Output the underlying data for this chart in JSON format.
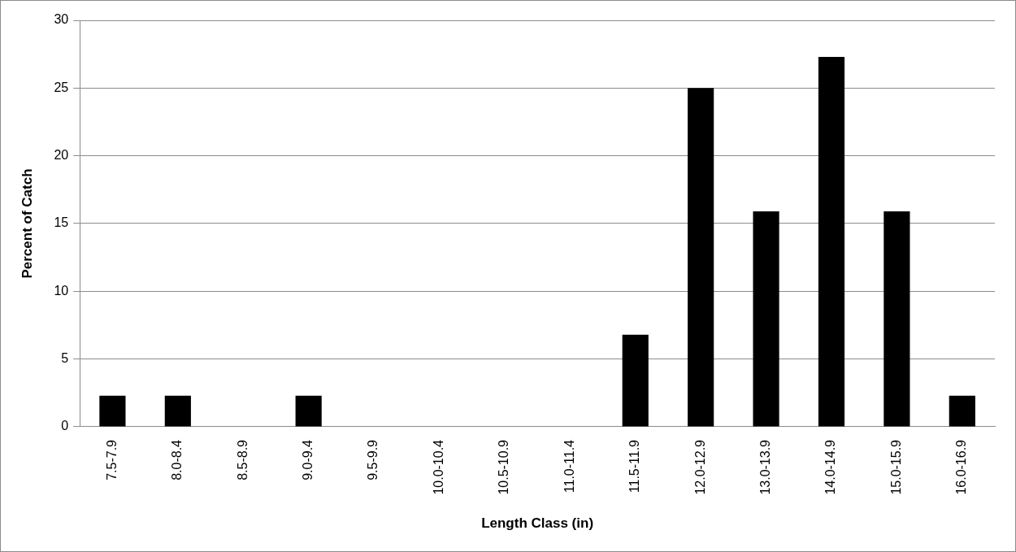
{
  "chart_data": {
    "type": "bar",
    "xlabel": "Length Class (in)",
    "ylabel": "Percent of Catch",
    "categories": [
      "7.5-7.9",
      "8.0-8.4",
      "8.5-8.9",
      "9.0-9.4",
      "9.5-9.9",
      "10.0-10.4",
      "10.5-10.9",
      "11.0-11.4",
      "11.5-11.9",
      "12.0-12.9",
      "13.0-13.9",
      "14.0-14.9",
      "15.0-15.9",
      "16.0-16.9"
    ],
    "values": [
      2.3,
      2.3,
      0,
      2.3,
      0,
      0,
      0,
      0,
      6.8,
      25,
      15.9,
      27.3,
      15.9,
      2.3
    ],
    "color": "#000000",
    "ylim": [
      0,
      30
    ],
    "yticks": [
      0,
      5,
      10,
      15,
      20,
      25,
      30
    ],
    "grid": "y",
    "legend": false
  }
}
